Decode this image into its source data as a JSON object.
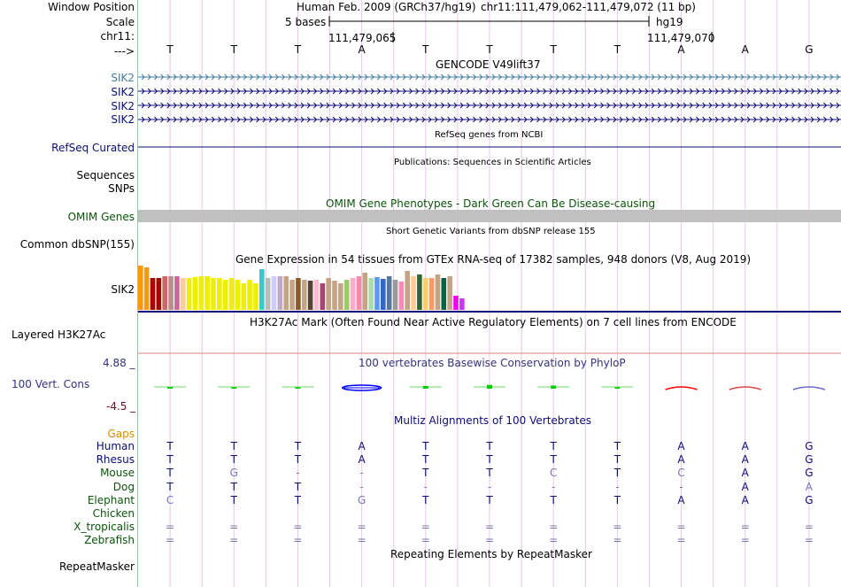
{
  "colors": {
    "navy": "#0c0c78",
    "omim": "#0a550a",
    "gaps": "#dc8c00",
    "grid": "#e6c8e6",
    "conservation": "#33337f",
    "sik2_first": "#407e9e",
    "brown": "#6e0a1e"
  },
  "header": {
    "labels": [
      "Window Position",
      "Scale",
      "chr11:",
      "--->"
    ],
    "assembly": "Human Feb. 2009 (GRCh37/hg19)",
    "position": "chr11:111,479,062-111,479,072 (11 bp)",
    "scale_text": "5 bases",
    "db": "hg19",
    "coord1": "111,479,065",
    "coord2": "111,479,070"
  },
  "base_sequence": [
    "T",
    "T",
    "T",
    "A",
    "T",
    "T",
    "T",
    "T",
    "A",
    "A",
    "G"
  ],
  "gencode": {
    "title": "GENCODE V49lift37",
    "labels": [
      "SIK2",
      "SIK2",
      "SIK2",
      "SIK2"
    ]
  },
  "refseq": {
    "label": "RefSeq Curated",
    "title": "RefSeq genes from NCBI"
  },
  "publications": {
    "title": "Publications: Sequences in Scientific Articles",
    "label1": "Sequences",
    "label2": "SNPs"
  },
  "omim": {
    "title": "OMIM Gene Phenotypes - Dark Green Can Be Disease-causing",
    "label": "OMIM Genes"
  },
  "dbsnp": {
    "label": "Common dbSNP(155)",
    "title": "Short Genetic Variants from dbSNP release 155"
  },
  "gtex": {
    "title": "Gene Expression in 54 tissues from GTEx RNA-seq of 17382 samples, 948 donors (V8, Aug 2019)",
    "label": "SIK2",
    "values": [
      50,
      48,
      36,
      36,
      38,
      38,
      38,
      36,
      36,
      37,
      38,
      38,
      36,
      36,
      34,
      36,
      34,
      30,
      34,
      30,
      46,
      36,
      38,
      38,
      38,
      34,
      36,
      34,
      33,
      34,
      30,
      36,
      33,
      30,
      34,
      36,
      38,
      42,
      36,
      37,
      35,
      38,
      34,
      32,
      44,
      38,
      40,
      36,
      36,
      40,
      36,
      38,
      16,
      13
    ],
    "bar_colors": [
      "#ff9900",
      "#ff9900",
      "#aa0000",
      "#aa0000",
      "#cc6666",
      "#c08888",
      "#cc6699",
      "#ffcc99",
      "#eeee00",
      "#eeee00",
      "#eeee00",
      "#eeee00",
      "#eeee00",
      "#eeee00",
      "#eeee00",
      "#eeee00",
      "#eeee00",
      "#eeee00",
      "#eeee00",
      "#eeee00",
      "#33cccc",
      "#bbbbbb",
      "#ccccff",
      "#bbaacc",
      "#c4a484",
      "#c4a484",
      "#8b5a2b",
      "#c4a484",
      "#554433",
      "#ffbbcc",
      "#aa4477",
      "#c4a484",
      "#c4a484",
      "#c4a484",
      "#99cc66",
      "#ffaacc",
      "#ff88aa",
      "#c4a484",
      "#aaddaa",
      "#5599ff",
      "#3366cc",
      "#557799",
      "#999999",
      "#ff88bb",
      "#c4a484",
      "#ffcc99",
      "#336633",
      "#ffcc66",
      "#ff9966",
      "#c4a484",
      "#006644",
      "#c4a484",
      "#ee00ee",
      "#cc33ff"
    ]
  },
  "h3k27": {
    "title": "H3K27Ac Mark (Often Found Near Active Regulatory Elements) on 7 cell lines from ENCODE",
    "label": "Layered H3K27Ac"
  },
  "conservation": {
    "title": "100 vertebrates Basewise Conservation by PhyloP",
    "label": "100 Vert. Cons",
    "ymax": "4.88 _",
    "ymin": "-4.5 _",
    "values": [
      0.4,
      0.2,
      0.15,
      0.6,
      0.8,
      1.3,
      1.0,
      0.2,
      -0.6,
      -0.5,
      -0.3
    ]
  },
  "multiz": {
    "title": "Multiz Alignments of 100 Vertebrates",
    "gaps_label": "Gaps",
    "repeat_title": "Repeating Elements by RepeatMasker",
    "repeat_label": "RepeatMasker",
    "species": [
      {
        "name": "Human",
        "seq": [
          "T",
          "T",
          "T",
          "A",
          "T",
          "T",
          "T",
          "T",
          "A",
          "A",
          "G"
        ]
      },
      {
        "name": "Rhesus",
        "seq": [
          "T",
          "T",
          "T",
          "A",
          "T",
          "T",
          "T",
          "T",
          "A",
          "A",
          "G"
        ]
      },
      {
        "name": "Mouse",
        "seq": [
          "T",
          "G",
          "-",
          "-",
          "T",
          "T",
          "C",
          "T",
          "C",
          "A",
          "G"
        ]
      },
      {
        "name": "Dog",
        "seq": [
          "T",
          "T",
          "T",
          "-",
          "-",
          "-",
          "-",
          "-",
          "-",
          "A",
          "A"
        ]
      },
      {
        "name": "Elephant",
        "seq": [
          "C",
          "T",
          "T",
          "G",
          "T",
          "T",
          "T",
          "T",
          "A",
          "A",
          "G"
        ]
      },
      {
        "name": "Chicken",
        "seq": [
          "",
          "",
          "",
          "",
          "",
          "",
          "",
          "",
          "",
          "",
          ""
        ]
      },
      {
        "name": "X_tropicalis",
        "seq": [
          "=",
          "=",
          "=",
          "=",
          "=",
          "=",
          "=",
          "=",
          "=",
          "=",
          "="
        ]
      },
      {
        "name": "Zebrafish",
        "seq": [
          "=",
          "=",
          "=",
          "=",
          "=",
          "=",
          "=",
          "=",
          "=",
          "=",
          "="
        ]
      }
    ]
  }
}
